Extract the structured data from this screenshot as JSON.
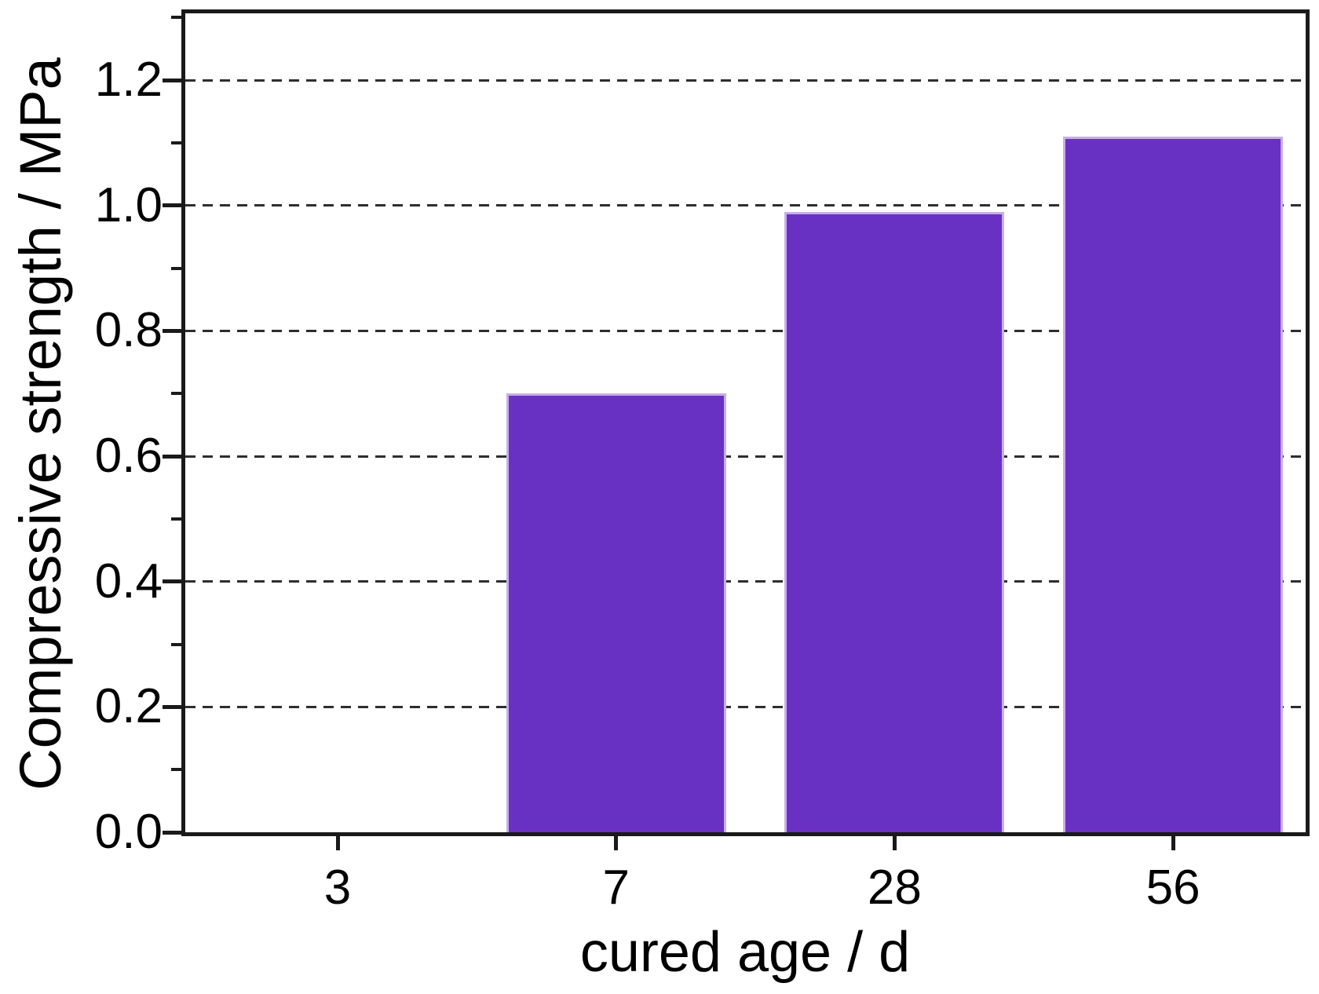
{
  "chart_data": {
    "type": "bar",
    "title": "",
    "xlabel": "cured age / d",
    "ylabel": "Compressive strength / MPa",
    "categories": [
      "3",
      "7",
      "28",
      "56"
    ],
    "values": [
      0,
      0.7,
      0.99,
      1.11
    ],
    "ylim": [
      0.0,
      1.31
    ],
    "yticks": [
      0.0,
      0.2,
      0.4,
      0.6,
      0.8,
      1.0,
      1.2
    ],
    "ytick_labels": [
      "0.0",
      "0.2",
      "0.4",
      "0.6",
      "0.8",
      "1.0",
      "1.2"
    ],
    "minor_ytick_step": 0.1,
    "grid": "horizontal dashed lines at major y ticks",
    "legend": "none",
    "bar_color": "#6930c4",
    "bar_edge_color": "#c8aee6",
    "axis_color": "#1a1a1a",
    "gridline_color": "#2e2e2e",
    "text_color": "#000000",
    "background_color": "#ffffff"
  }
}
